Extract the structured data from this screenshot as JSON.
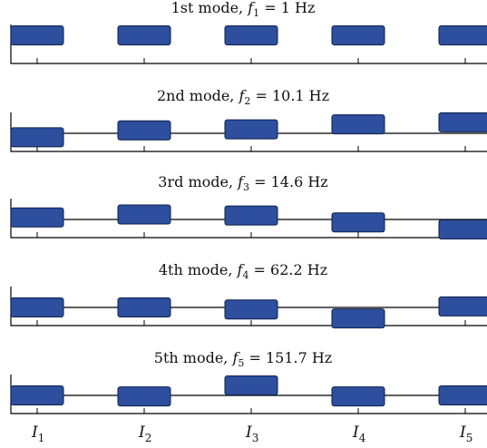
{
  "modes": [
    {
      "label": "1st mode, ",
      "f_var": "f",
      "f_sub": "1",
      "f_value": " = 1 Hz",
      "displacements": [
        1.0,
        1.0,
        1.0,
        1.0,
        1.0
      ]
    },
    {
      "label": "2nd mode, ",
      "f_var": "f",
      "f_sub": "2",
      "f_value": " = 10.1 Hz",
      "displacements": [
        -0.2,
        0.15,
        0.2,
        0.45,
        0.55
      ]
    },
    {
      "label": "3rd mode, ",
      "f_var": "f",
      "f_sub": "3",
      "f_value": " = 14.6 Hz",
      "displacements": [
        0.1,
        0.25,
        0.2,
        -0.15,
        -0.5
      ]
    },
    {
      "label": "4th mode, ",
      "f_var": "f",
      "f_sub": "4",
      "f_value": " = 62.2 Hz",
      "displacements": [
        0.0,
        0.0,
        -0.1,
        -0.55,
        0.05
      ]
    },
    {
      "label": "5th mode, ",
      "f_var": "f",
      "f_sub": "5",
      "f_value": " = 151.7 Hz",
      "displacements": [
        0.0,
        -0.05,
        0.5,
        -0.05,
        0.0
      ]
    }
  ],
  "x_labels": [
    {
      "var": "I",
      "sub": "1"
    },
    {
      "var": "I",
      "sub": "2"
    },
    {
      "var": "I",
      "sub": "3"
    },
    {
      "var": "I",
      "sub": "4"
    },
    {
      "var": "I",
      "sub": "5"
    }
  ],
  "colors": {
    "mass_fill": "#2d4f9e",
    "mass_stroke": "#0d1e4a",
    "axis": "#000000"
  }
}
